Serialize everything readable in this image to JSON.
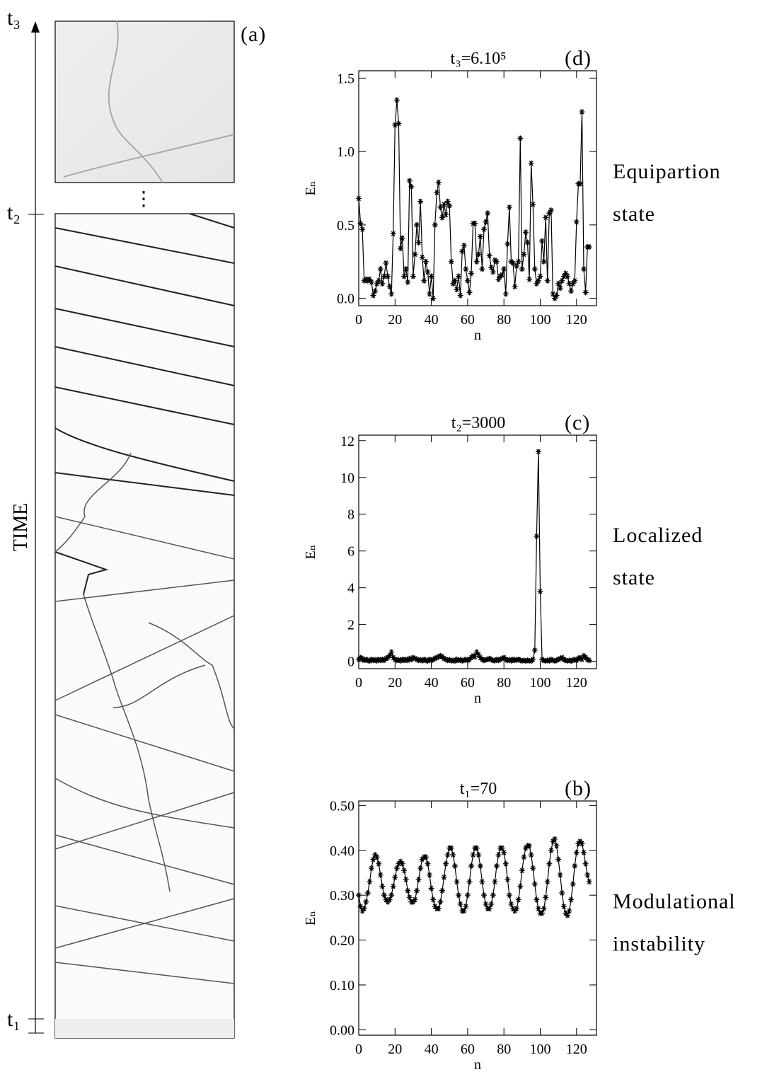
{
  "panel_a": {
    "label": "(a)",
    "axis_label": "TIME",
    "time_marks": [
      "t₃",
      "t₂",
      "t₁"
    ],
    "gap_marker": "⋮"
  },
  "chart_data": [
    {
      "type": "line",
      "title": "t₃=6.10⁵",
      "panel_label": "(d)",
      "annotation": [
        "Equipartion",
        "state"
      ],
      "x_label": "n",
      "y_label": "Eₙ",
      "xlim": [
        0,
        131
      ],
      "ylim": [
        -0.05,
        1.55
      ],
      "xticks": [
        0,
        20,
        40,
        60,
        80,
        100,
        120
      ],
      "yticks": [
        {
          "value": 0,
          "label": "0.0"
        },
        {
          "value": 0.5,
          "label": "0.5"
        },
        {
          "value": 1,
          "label": "1.0"
        },
        {
          "value": 1.5,
          "label": "1.5"
        }
      ],
      "color": "#000000",
      "values": [
        0.68,
        0.51,
        0.47,
        0.12,
        0.13,
        0.12,
        0.13,
        0.11,
        0.02,
        0.05,
        0.1,
        0.12,
        0.2,
        0.1,
        0.15,
        0.24,
        0.15,
        0.08,
        0.03,
        0.44,
        1.18,
        1.35,
        1.19,
        0.34,
        0.41,
        0.15,
        0.2,
        0.11,
        0.8,
        0.76,
        0.15,
        0.3,
        0.5,
        0.38,
        0.66,
        0.28,
        0.12,
        0.25,
        0.18,
        0.03,
        0.15,
        0.0,
        0.5,
        0.72,
        0.79,
        0.62,
        0.55,
        0.64,
        0.57,
        0.66,
        0.63,
        0.25,
        0.1,
        0.12,
        0.06,
        0.15,
        0.02,
        0.32,
        0.36,
        0.2,
        0.12,
        0.04,
        0.17,
        0.51,
        0.51,
        0.25,
        0.3,
        0.42,
        0.2,
        0.47,
        0.52,
        0.58,
        0.29,
        0.21,
        0.18,
        0.26,
        0.25,
        0.13,
        0.15,
        0.16,
        0.2,
        0.03,
        0.37,
        0.62,
        0.25,
        0.24,
        0.08,
        0.22,
        0.25,
        1.09,
        0.2,
        0.3,
        0.45,
        0.38,
        0.13,
        0.92,
        0.64,
        0.2,
        0.1,
        0.12,
        0.15,
        0.39,
        0.25,
        0.55,
        0.12,
        0.58,
        0.6,
        0.03,
        0.0,
        0.02,
        0.1,
        0.07,
        0.12,
        0.15,
        0.17,
        0.15,
        0.1,
        0.05,
        0.1,
        0.12,
        0.52,
        0.78,
        0.78,
        1.27,
        0.2,
        0.04,
        0.35,
        0.35
      ]
    },
    {
      "type": "line",
      "title": "t₂=3000",
      "panel_label": "(c)",
      "annotation": [
        "Localized",
        "state"
      ],
      "x_label": "n",
      "y_label": "Eₙ",
      "xlim": [
        0,
        131
      ],
      "ylim": [
        -0.4,
        12.3
      ],
      "xticks": [
        0,
        20,
        40,
        60,
        80,
        100,
        120
      ],
      "yticks": [
        0,
        2,
        4,
        6,
        8,
        10,
        12
      ],
      "color": "#000000",
      "values": [
        0.1,
        0.2,
        0.15,
        0.05,
        0.1,
        0.05,
        0.02,
        0.1,
        0.05,
        0.08,
        0.03,
        0.1,
        0.05,
        0.1,
        0.05,
        0.15,
        0.2,
        0.3,
        0.5,
        0.2,
        0.1,
        0.05,
        0.08,
        0.03,
        0.1,
        0.05,
        0.1,
        0.05,
        0.15,
        0.1,
        0.2,
        0.15,
        0.1,
        0.05,
        0.08,
        0.03,
        0.1,
        0.05,
        0.02,
        0.1,
        0.05,
        0.1,
        0.15,
        0.2,
        0.25,
        0.3,
        0.25,
        0.15,
        0.1,
        0.05,
        0.08,
        0.03,
        0.05,
        0.02,
        0.1,
        0.05,
        0.08,
        0.03,
        0.05,
        0.1,
        0.05,
        0.1,
        0.2,
        0.3,
        0.25,
        0.5,
        0.35,
        0.2,
        0.1,
        0.05,
        0.08,
        0.1,
        0.15,
        0.1,
        0.05,
        0.03,
        0.1,
        0.05,
        0.1,
        0.15,
        0.2,
        0.1,
        0.05,
        0.08,
        0.03,
        0.1,
        0.05,
        0.08,
        0.1,
        0.05,
        0.03,
        0.05,
        0.02,
        0.05,
        0.03,
        0.02,
        0.1,
        0.6,
        6.8,
        11.4,
        3.8,
        0.1,
        0.05,
        0.02,
        0.05,
        0.03,
        0.1,
        0.05,
        0.02,
        0.05,
        0.1,
        0.15,
        0.2,
        0.1,
        0.05,
        0.03,
        0.05,
        0.02,
        0.05,
        0.1,
        0.05,
        0.15,
        0.2,
        0.1,
        0.3,
        0.2,
        0.1,
        0.05
      ]
    },
    {
      "type": "line",
      "title": "t₁=70",
      "panel_label": "(b)",
      "annotation": [
        "Modulational",
        "instability"
      ],
      "x_label": "n",
      "y_label": "Eₙ",
      "xlim": [
        0,
        131
      ],
      "ylim": [
        -0.012,
        0.51
      ],
      "xticks": [
        0,
        20,
        40,
        60,
        80,
        100,
        120
      ],
      "yticks": [
        {
          "value": 0,
          "label": "0.00"
        },
        {
          "value": 0.1,
          "label": "0.10"
        },
        {
          "value": 0.2,
          "label": "0.20"
        },
        {
          "value": 0.3,
          "label": "0.30"
        },
        {
          "value": 0.4,
          "label": "0.40"
        },
        {
          "value": 0.5,
          "label": "0.50"
        }
      ],
      "color": "#000000",
      "values": [
        0.3,
        0.275,
        0.265,
        0.27,
        0.285,
        0.305,
        0.33,
        0.36,
        0.38,
        0.39,
        0.385,
        0.37,
        0.345,
        0.32,
        0.3,
        0.29,
        0.285,
        0.29,
        0.3,
        0.32,
        0.34,
        0.36,
        0.37,
        0.375,
        0.37,
        0.355,
        0.335,
        0.31,
        0.295,
        0.285,
        0.285,
        0.29,
        0.31,
        0.335,
        0.36,
        0.38,
        0.385,
        0.385,
        0.37,
        0.345,
        0.315,
        0.29,
        0.275,
        0.27,
        0.27,
        0.285,
        0.31,
        0.34,
        0.37,
        0.39,
        0.405,
        0.405,
        0.39,
        0.365,
        0.33,
        0.3,
        0.28,
        0.265,
        0.265,
        0.275,
        0.3,
        0.33,
        0.365,
        0.39,
        0.405,
        0.405,
        0.39,
        0.365,
        0.33,
        0.3,
        0.28,
        0.27,
        0.27,
        0.28,
        0.3,
        0.33,
        0.365,
        0.39,
        0.405,
        0.405,
        0.395,
        0.37,
        0.335,
        0.3,
        0.28,
        0.27,
        0.265,
        0.27,
        0.29,
        0.32,
        0.355,
        0.385,
        0.405,
        0.41,
        0.41,
        0.39,
        0.36,
        0.325,
        0.29,
        0.27,
        0.26,
        0.26,
        0.27,
        0.295,
        0.33,
        0.37,
        0.4,
        0.42,
        0.425,
        0.41,
        0.38,
        0.345,
        0.305,
        0.275,
        0.26,
        0.255,
        0.265,
        0.29,
        0.325,
        0.365,
        0.395,
        0.415,
        0.42,
        0.415,
        0.395,
        0.37,
        0.345,
        0.33
      ]
    }
  ]
}
